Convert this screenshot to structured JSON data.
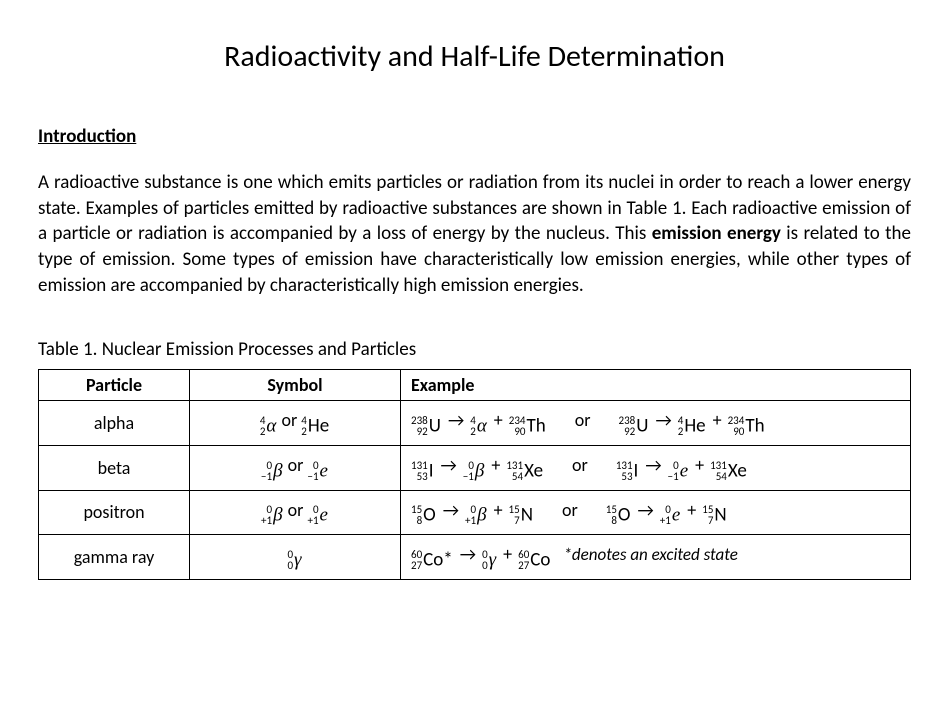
{
  "title": "Radioactivity and Half-Life Determination",
  "section_heading": "Introduction",
  "intro_html": "A radioactive substance is one which emits particles or radiation from its nuclei in order to reach a lower energy state. Examples of particles emitted by radioactive substances are shown in Table 1. Each radioactive emission of a particle or radiation is accompanied by a loss of energy by the nucleus. This <b>emission energy</b> is related to the type of emission. Some types of emission have characteristically low emission energies, while other types of emission are accompanied by characteristically high emission energies.",
  "table_caption": "Table 1.  Nuclear Emission Processes and Particles",
  "columns": [
    "Particle",
    "Symbol",
    "Example"
  ],
  "or_label": "or",
  "footnote": "*denotes an excited state",
  "rows": [
    {
      "particle": "alpha",
      "symbol": [
        {
          "top": "4",
          "bot": "2",
          "sym": "α",
          "greek": true
        },
        " or ",
        {
          "top": "4",
          "bot": "2",
          "sym": "He"
        }
      ],
      "eq1": [
        {
          "top": "238",
          "bot": "92",
          "sym": "U"
        },
        "→",
        {
          "top": "4",
          "bot": "2",
          "sym": "α",
          "greek": true
        },
        "+",
        {
          "top": "234",
          "bot": "90",
          "sym": "Th"
        }
      ],
      "eq2": [
        {
          "top": "238",
          "bot": "92",
          "sym": "U"
        },
        "→",
        {
          "top": "4",
          "bot": "2",
          "sym": "He"
        },
        "+",
        {
          "top": "234",
          "bot": "90",
          "sym": "Th"
        }
      ]
    },
    {
      "particle": "beta",
      "symbol": [
        {
          "top": "0",
          "bot": "−1",
          "sym": "β",
          "greek": true
        },
        " or ",
        {
          "top": "0",
          "bot": "−1",
          "sym": "e",
          "greek": true
        }
      ],
      "eq1": [
        {
          "top": "131",
          "bot": "53",
          "sym": "I"
        },
        "→",
        {
          "top": "0",
          "bot": "−1",
          "sym": "β",
          "greek": true
        },
        "+",
        {
          "top": "131",
          "bot": "54",
          "sym": "Xe"
        }
      ],
      "eq2": [
        {
          "top": "131",
          "bot": "53",
          "sym": "I"
        },
        "→",
        {
          "top": "0",
          "bot": "−1",
          "sym": "e",
          "greek": true
        },
        "+",
        {
          "top": "131",
          "bot": "54",
          "sym": "Xe"
        }
      ]
    },
    {
      "particle": "positron",
      "symbol": [
        {
          "top": "0",
          "bot": "+1",
          "sym": "β",
          "greek": true
        },
        " or ",
        {
          "top": "0",
          "bot": "+1",
          "sym": "e",
          "greek": true
        }
      ],
      "eq1": [
        {
          "top": "15",
          "bot": "8",
          "sym": "O"
        },
        "→",
        {
          "top": "0",
          "bot": "+1",
          "sym": "β",
          "greek": true
        },
        "+",
        {
          "top": "15",
          "bot": "7",
          "sym": "N"
        }
      ],
      "eq2": [
        {
          "top": "15",
          "bot": "8",
          "sym": "O"
        },
        "→",
        {
          "top": "0",
          "bot": "+1",
          "sym": "e",
          "greek": true
        },
        "+",
        {
          "top": "15",
          "bot": "7",
          "sym": "N"
        }
      ]
    },
    {
      "particle": "gamma ray",
      "symbol": [
        {
          "top": "0",
          "bot": "0",
          "sym": "γ",
          "greek": true
        }
      ],
      "eq1": [
        {
          "top": "60",
          "bot": "27",
          "sym": "Co*"
        },
        "→",
        {
          "top": "0",
          "bot": "0",
          "sym": "γ",
          "greek": true
        },
        "+",
        {
          "top": "60",
          "bot": "27",
          "sym": "Co"
        }
      ],
      "footnote": true
    }
  ]
}
